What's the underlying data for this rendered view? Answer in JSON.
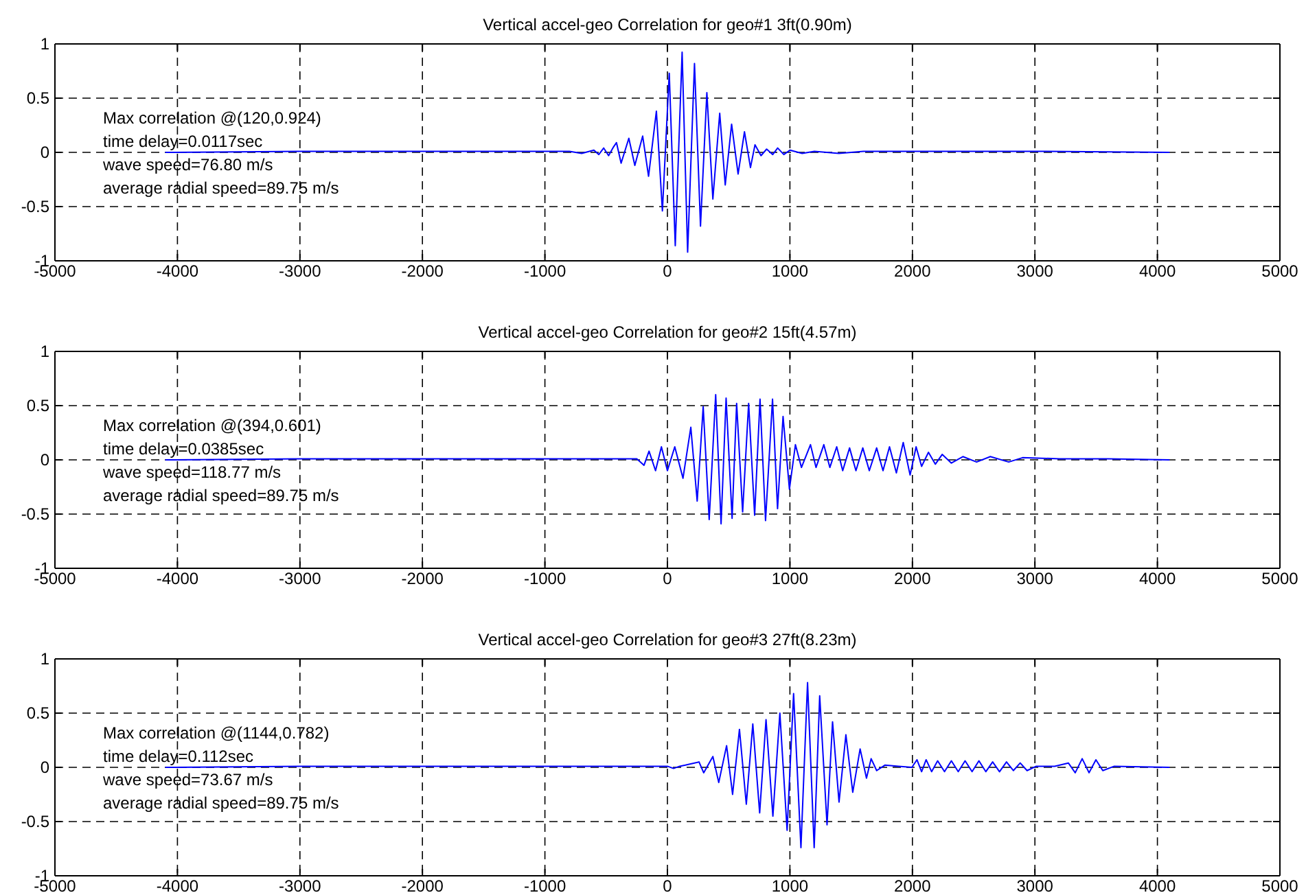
{
  "chart_data": [
    {
      "type": "line",
      "title": "Vertical accel-geo Correlation for geo#1 3ft(0.90m)",
      "xlim": [
        -5000,
        5000
      ],
      "ylim": [
        -1,
        1
      ],
      "xticks": [
        -5000,
        -4000,
        -3000,
        -2000,
        -1000,
        0,
        1000,
        2000,
        3000,
        4000,
        5000
      ],
      "yticks": [
        -1,
        -0.5,
        0,
        0.5,
        1
      ],
      "grid": true,
      "annotations": [
        "Max correlation @(120,0.924)",
        "time delay=0.0117sec",
        "wave speed=76.80 m/s",
        "average radial speed=89.75 m/s"
      ],
      "series": [
        {
          "color": "#0000ff",
          "x": [
            -4095,
            -3000,
            -2000,
            -1500,
            -1000,
            -800,
            -700,
            -600,
            -560,
            -520,
            -480,
            -440,
            -416,
            -378,
            -315,
            -266,
            -202,
            -154,
            -90,
            -41,
            15,
            64,
            120,
            165,
            221,
            270,
            322,
            371,
            427,
            472,
            524,
            577,
            629,
            678,
            715,
            764,
            810,
            860,
            900,
            950,
            1000,
            1100,
            1200,
            1400,
            1600,
            2000,
            2500,
            3000,
            4095
          ],
          "values": [
            0,
            0.01,
            0.01,
            0.01,
            0.01,
            0.01,
            -0.01,
            0.02,
            -0.02,
            0.04,
            -0.03,
            0.05,
            0.09,
            -0.1,
            0.13,
            -0.12,
            0.15,
            -0.22,
            0.38,
            -0.54,
            0.73,
            -0.86,
            0.924,
            -0.92,
            0.82,
            -0.68,
            0.55,
            -0.43,
            0.36,
            -0.3,
            0.26,
            -0.2,
            0.19,
            -0.14,
            0.07,
            -0.03,
            0.03,
            -0.02,
            0.04,
            -0.02,
            0.02,
            -0.01,
            0.01,
            -0.01,
            0.01,
            0.01,
            0.01,
            0.01,
            0
          ]
        }
      ]
    },
    {
      "type": "line",
      "title": "Vertical accel-geo Correlation for geo#2 15ft(4.57m)",
      "xlim": [
        -5000,
        5000
      ],
      "ylim": [
        -1,
        1
      ],
      "xticks": [
        -5000,
        -4000,
        -3000,
        -2000,
        -1000,
        0,
        1000,
        2000,
        3000,
        4000,
        5000
      ],
      "yticks": [
        -1,
        -0.5,
        0,
        0.5,
        1
      ],
      "grid": true,
      "annotations": [
        "Max correlation @(394,0.601)",
        "time delay=0.0385sec",
        "wave speed=118.77 m/s",
        "average radial speed=89.75 m/s"
      ],
      "series": [
        {
          "color": "#0000ff",
          "x": [
            -4095,
            -3000,
            -2000,
            -1000,
            -500,
            -250,
            -220,
            -191,
            -150,
            -97,
            -49,
            0,
            60,
            127,
            191,
            243,
            292,
            341,
            394,
            438,
            479,
            528,
            565,
            614,
            663,
            712,
            756,
            801,
            858,
            899,
            944,
            996,
            1045,
            1094,
            1168,
            1213,
            1277,
            1326,
            1382,
            1431,
            1487,
            1539,
            1595,
            1648,
            1708,
            1760,
            1813,
            1869,
            1925,
            1981,
            2030,
            2075,
            2131,
            2187,
            2243,
            2318,
            2412,
            2524,
            2636,
            2786,
            2899,
            3200,
            3600,
            4095
          ],
          "values": [
            0,
            0.01,
            0.01,
            0.01,
            0.01,
            0.01,
            -0.02,
            -0.05,
            0.08,
            -0.1,
            0.12,
            -0.1,
            0.12,
            -0.17,
            0.3,
            -0.38,
            0.49,
            -0.55,
            0.601,
            -0.59,
            0.57,
            -0.54,
            0.52,
            -0.48,
            0.52,
            -0.51,
            0.56,
            -0.56,
            0.56,
            -0.45,
            0.4,
            -0.27,
            0.14,
            -0.07,
            0.14,
            -0.07,
            0.14,
            -0.07,
            0.12,
            -0.1,
            0.11,
            -0.1,
            0.11,
            -0.1,
            0.11,
            -0.1,
            0.12,
            -0.12,
            0.16,
            -0.14,
            0.12,
            -0.06,
            0.07,
            -0.04,
            0.05,
            -0.03,
            0.03,
            -0.02,
            0.03,
            -0.02,
            0.02,
            0.01,
            0.01,
            0
          ]
        }
      ]
    },
    {
      "type": "line",
      "title": "Vertical accel-geo Correlation for geo#3 27ft(8.23m)",
      "xlim": [
        -5000,
        5000
      ],
      "ylim": [
        -1,
        1
      ],
      "xticks": [
        -5000,
        -4000,
        -3000,
        -2000,
        -1000,
        0,
        1000,
        2000,
        3000,
        4000,
        5000
      ],
      "yticks": [
        -1,
        -0.5,
        0,
        0.5,
        1
      ],
      "grid": true,
      "annotations": [
        "Max correlation @(1144,0.782)",
        "time delay=0.112sec",
        "wave speed=73.67 m/s",
        "average radial speed=89.75 m/s"
      ],
      "series": [
        {
          "color": "#0000ff",
          "x": [
            -4095,
            -3000,
            -2000,
            -1000,
            -500,
            0,
            50,
            100,
            146,
            258,
            296,
            371,
            419,
            483,
            532,
            588,
            644,
            697,
            753,
            805,
            861,
            918,
            977,
            1030,
            1090,
            1144,
            1198,
            1243,
            1303,
            1348,
            1401,
            1457,
            1513,
            1573,
            1625,
            1663,
            1708,
            1775,
            1888,
            1996,
            2037,
            2075,
            2112,
            2157,
            2206,
            2262,
            2318,
            2374,
            2430,
            2487,
            2543,
            2599,
            2655,
            2711,
            2768,
            2824,
            2880,
            2936,
            3011,
            3161,
            3273,
            3329,
            3386,
            3442,
            3498,
            3554,
            3648,
            4095
          ],
          "values": [
            0,
            0.01,
            0.01,
            0.01,
            0.01,
            0.01,
            -0.01,
            0.01,
            0.02,
            0.05,
            -0.05,
            0.1,
            -0.14,
            0.2,
            -0.25,
            0.35,
            -0.34,
            0.4,
            -0.42,
            0.44,
            -0.45,
            0.5,
            -0.58,
            0.68,
            -0.74,
            0.782,
            -0.74,
            0.66,
            -0.53,
            0.42,
            -0.32,
            0.3,
            -0.23,
            0.17,
            -0.1,
            0.08,
            -0.03,
            0.02,
            0.01,
            0,
            0.07,
            -0.04,
            0.07,
            -0.04,
            0.06,
            -0.04,
            0.06,
            -0.04,
            0.06,
            -0.04,
            0.06,
            -0.04,
            0.05,
            -0.04,
            0.05,
            -0.03,
            0.04,
            -0.03,
            0.01,
            0.01,
            0.04,
            -0.05,
            0.08,
            -0.05,
            0.07,
            -0.03,
            0.01,
            0
          ]
        }
      ]
    }
  ]
}
